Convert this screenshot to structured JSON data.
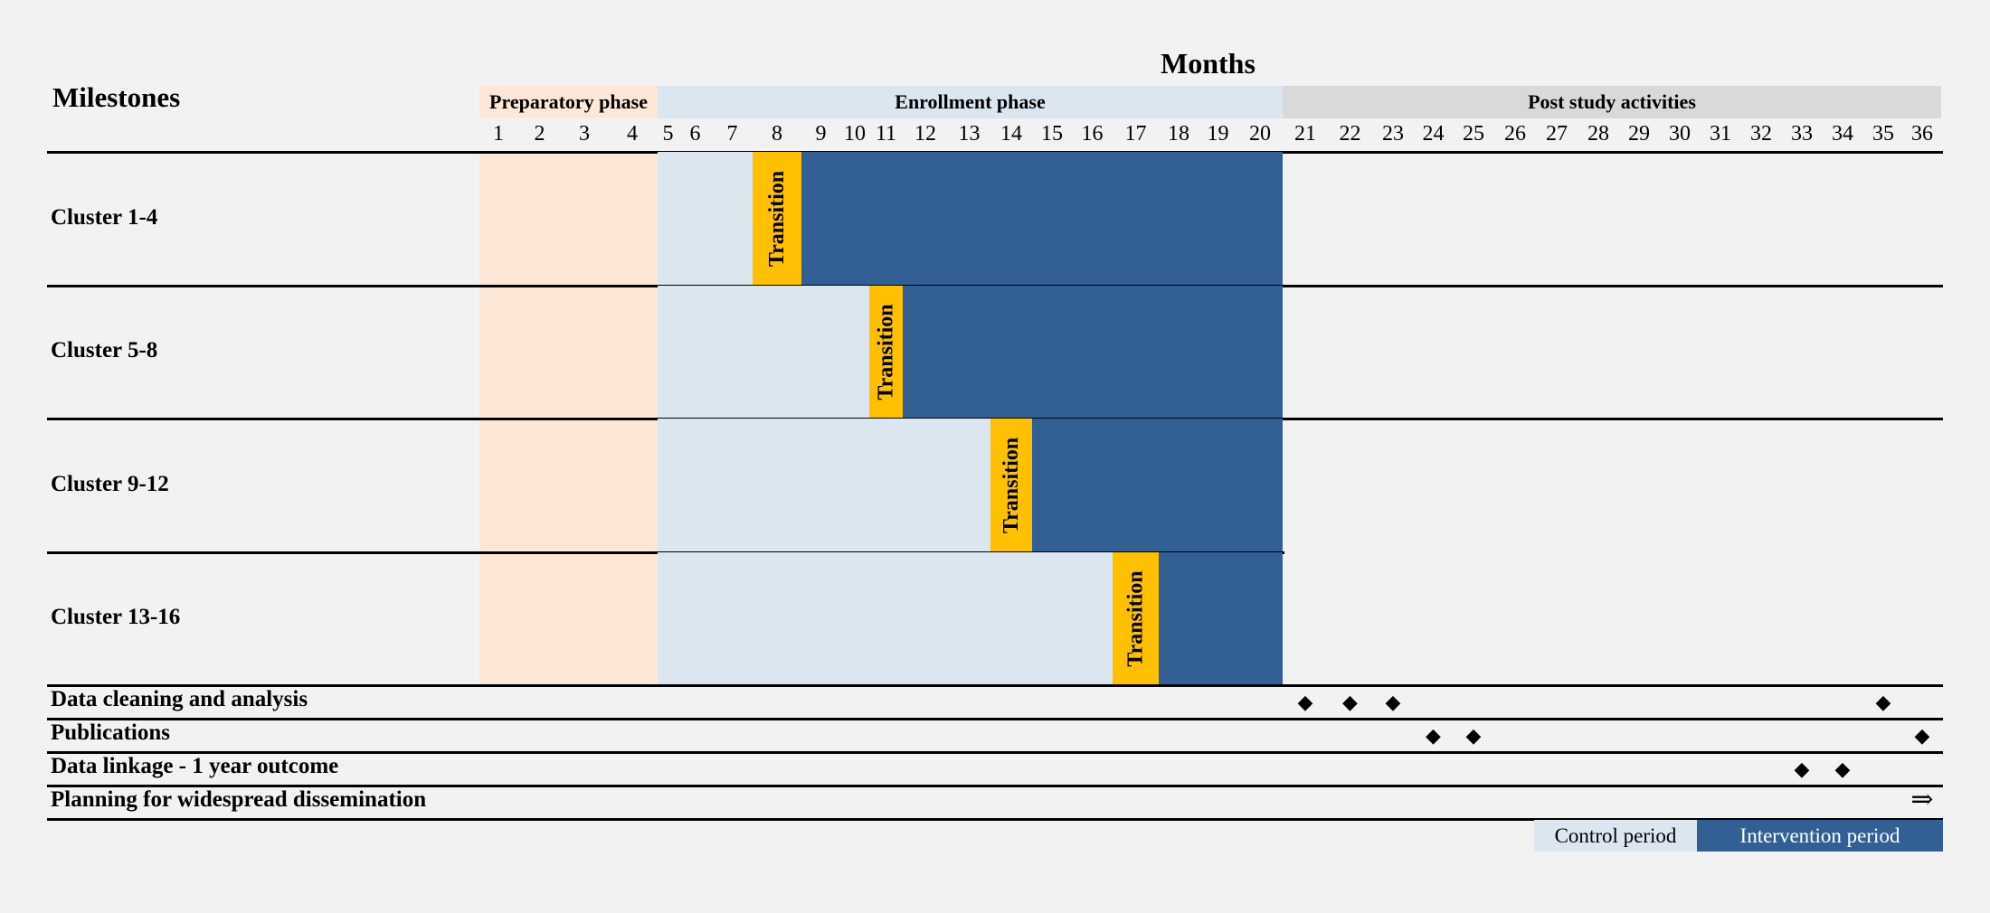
{
  "title": "Months",
  "milestones_label": "Milestones",
  "phases": [
    {
      "label": "Preparatory phase",
      "start": 1,
      "end": 4,
      "color": "#fde8d8"
    },
    {
      "label": "Enrollment phase",
      "start": 5,
      "end": 20,
      "color": "#dce6f1"
    },
    {
      "label": "Post study activities",
      "start": 21,
      "end": 36,
      "color": "#d9d9d9"
    }
  ],
  "months": [
    "1",
    "2",
    "3",
    "4",
    "5",
    "6",
    "7",
    "8",
    "9",
    "10",
    "11",
    "12",
    "13",
    "14",
    "15",
    "16",
    "17",
    "18",
    "19",
    "20",
    "21",
    "22",
    "23",
    "24",
    "25",
    "26",
    "27",
    "28",
    "29",
    "30",
    "31",
    "32",
    "33",
    "34",
    "35",
    "36"
  ],
  "clusters": [
    {
      "label": "Cluster 1-4",
      "transition_month": 8
    },
    {
      "label": "Cluster 5-8",
      "transition_month": 11
    },
    {
      "label": "Cluster 9-12",
      "transition_month": 14
    },
    {
      "label": "Cluster 13-16",
      "transition_month": 17
    }
  ],
  "transition_label": "Transition",
  "activities": [
    {
      "label": "Data cleaning and analysis",
      "markers": [
        21,
        22,
        23,
        35
      ],
      "symbol": "◆"
    },
    {
      "label": "Publications",
      "markers": [
        24,
        25,
        36
      ],
      "symbol": "◆"
    },
    {
      "label": "Data linkage - 1 year outcome",
      "markers": [
        33,
        34
      ],
      "symbol": "◆"
    },
    {
      "label": "Planning for widespread dissemination",
      "markers": [
        36
      ],
      "symbol": "⇒"
    }
  ],
  "legend": [
    {
      "label": "Control period",
      "color": "#dce6f1"
    },
    {
      "label": "Intervention period",
      "color": "#336094"
    }
  ],
  "colors": {
    "preparatory": "#fde8d8",
    "control": "#dce6f1",
    "intervention": "#336094",
    "transition": "#ffc000",
    "post": "#d9d9d9"
  }
}
